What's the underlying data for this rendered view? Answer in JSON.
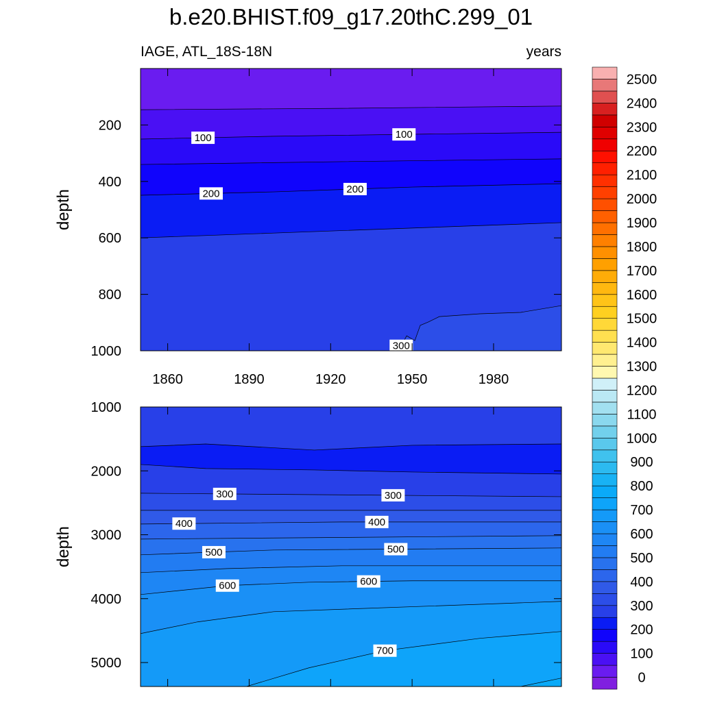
{
  "chart_data": {
    "type": "contour",
    "title": "b.e20.BHIST.f09_g17.20thC.299_01",
    "left_string": "IAGE, ATL_18S-18N",
    "right_string": "years",
    "xlim": [
      1850,
      2005
    ],
    "xticks": [
      1860,
      1890,
      1920,
      1950,
      1980
    ],
    "panels": [
      {
        "ylabel": "depth",
        "ylim": [
          0,
          1000
        ],
        "yticks": [
          200,
          400,
          600,
          800,
          1000
        ],
        "y_reversed": true,
        "show_xtick_labels": true,
        "contours": [
          {
            "level": 50,
            "x": [
              1850,
              1924,
              2005
            ],
            "y": [
              146,
              141,
              133
            ]
          },
          {
            "level": 100,
            "x": [
              1850,
              1899,
              1950,
              2005
            ],
            "y": [
              250,
              240,
              233,
              226
            ],
            "label_x": [
              1873,
              1947
            ]
          },
          {
            "level": 150,
            "x": [
              1850,
              1924,
              2005
            ],
            "y": [
              340,
              330,
              320
            ]
          },
          {
            "level": 200,
            "x": [
              1850,
              1899,
              1950,
              2005
            ],
            "y": [
              449,
              437,
              420,
              408
            ],
            "label_x": [
              1876,
              1929
            ]
          },
          {
            "level": 250,
            "x": [
              1850,
              1899,
              2005
            ],
            "y": [
              600,
              583,
              546
            ]
          },
          {
            "level": 300,
            "x": [
              1945,
              1948,
              1951,
              1953,
              1956,
              1960,
              1975,
              1990,
              2005
            ],
            "y": [
              1000,
              947,
              964,
              910,
              898,
              879,
              869,
              864,
              840
            ],
            "label_x": [
              1946
            ]
          }
        ]
      },
      {
        "ylabel": "depth",
        "ylim": [
          1000,
          5375
        ],
        "yticks": [
          1000,
          2000,
          3000,
          4000,
          5000
        ],
        "y_reversed": true,
        "show_xtick_labels": false,
        "contours": [
          {
            "level": 250,
            "x": [
              1850,
              1874,
              1914,
              1950,
              2005
            ],
            "y": [
              1621,
              1579,
              1675,
              1600,
              1579
            ]
          },
          {
            "level": 250,
            "x": [
              1850,
              1874,
              1914,
              1950,
              2005
            ],
            "y": [
              1900,
              1964,
              1986,
              2018,
              2050
            ]
          },
          {
            "level": 300,
            "x": [
              1850,
              2005
            ],
            "y": [
              2350,
              2404
            ],
            "label_x": [
              1881,
              1943
            ]
          },
          {
            "level": 350,
            "x": [
              1850,
              2005
            ],
            "y": [
              2618,
              2618
            ]
          },
          {
            "level": 400,
            "x": [
              1850,
              1924,
              2005
            ],
            "y": [
              2832,
              2800,
              2800
            ],
            "label_x": [
              1866,
              1937
            ]
          },
          {
            "level": 450,
            "x": [
              1850,
              2005
            ],
            "y": [
              3068,
              3014
            ]
          },
          {
            "level": 500,
            "x": [
              1850,
              1899,
              2005
            ],
            "y": [
              3314,
              3239,
              3207
            ],
            "label_x": [
              1877,
              1944
            ]
          },
          {
            "level": 550,
            "x": [
              1850,
              1882,
              1924,
              2005
            ],
            "y": [
              3593,
              3529,
              3486,
              3486
            ]
          },
          {
            "level": 600,
            "x": [
              1850,
              1882,
              1912,
              1950,
              2005
            ],
            "y": [
              3936,
              3796,
              3743,
              3721,
              3721
            ],
            "label_x": [
              1882,
              1934
            ]
          },
          {
            "level": 650,
            "x": [
              1850,
              1871,
              1899,
              2005
            ],
            "y": [
              4547,
              4364,
              4204,
              4043
            ]
          },
          {
            "level": 700,
            "x": [
              1889,
              1912,
              1940,
              1975,
              2005
            ],
            "y": [
              5375,
              5083,
              4814,
              4621,
              4514
            ],
            "label_x": [
              1940
            ]
          },
          {
            "level": 750,
            "x": [
              1990,
              2005
            ],
            "y": [
              5375,
              5243
            ]
          }
        ]
      }
    ],
    "colorbar": {
      "levels": [
        0,
        50,
        100,
        150,
        200,
        250,
        300,
        350,
        400,
        450,
        500,
        550,
        600,
        650,
        700,
        750,
        800,
        850,
        900,
        950,
        1000,
        1050,
        1100,
        1150,
        1200,
        1250,
        1300,
        1350,
        1400,
        1450,
        1500,
        1550,
        1600,
        1650,
        1700,
        1750,
        1800,
        1850,
        1900,
        1950,
        2000,
        2050,
        2100,
        2150,
        2200,
        2250,
        2300,
        2350,
        2400,
        2450,
        2500
      ],
      "ticks": [
        0,
        100,
        200,
        300,
        400,
        500,
        600,
        700,
        800,
        900,
        1000,
        1100,
        1200,
        1300,
        1400,
        1500,
        1600,
        1700,
        1800,
        1900,
        2000,
        2100,
        2200,
        2300,
        2400,
        2500
      ],
      "colors": [
        "#8020e0",
        "#6a1cf0",
        "#4a10f4",
        "#2a0af8",
        "#1004fc",
        "#0a1cf4",
        "#2840e8",
        "#2c4ee8",
        "#305ae8",
        "#2c66ec",
        "#2872ee",
        "#227cf2",
        "#1e86f4",
        "#1a90f6",
        "#149af8",
        "#0ea4fa",
        "#0aaaf8",
        "#18b2f4",
        "#2cbaf0",
        "#40c2ee",
        "#5ac8ec",
        "#72d0ec",
        "#8ad8ee",
        "#a2e0f0",
        "#bae8f4",
        "#d0f0f8",
        "#fff8b0",
        "#fff090",
        "#ffe870",
        "#ffe050",
        "#ffd838",
        "#ffd020",
        "#ffc418",
        "#ffb810",
        "#ffac08",
        "#ffa000",
        "#ff9000",
        "#ff8000",
        "#ff7000",
        "#ff6000",
        "#ff5000",
        "#ff4000",
        "#ff3000",
        "#ff2000",
        "#ff1000",
        "#f00000",
        "#e00000",
        "#d00000",
        "#d82020",
        "#e05050",
        "#e87878",
        "#f8b0b0"
      ]
    }
  }
}
